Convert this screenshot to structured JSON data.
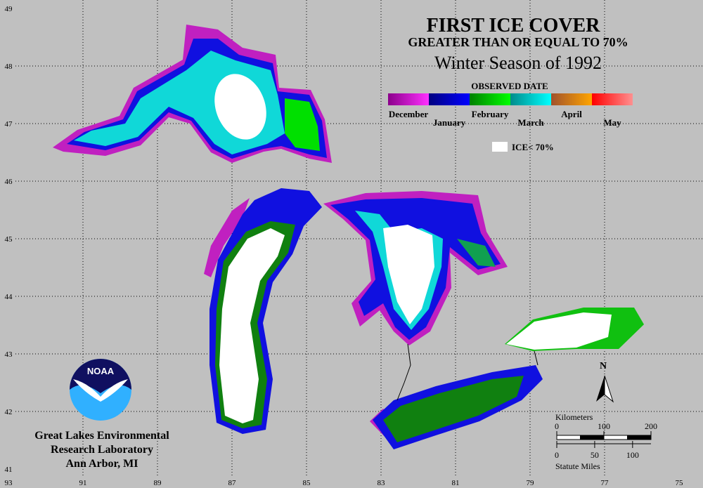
{
  "title": "FIRST ICE COVER",
  "subtitle": "GREATER THAN OR EQUAL TO 70%",
  "season": "Winter Season of 1992",
  "legend": {
    "title": "OBSERVED DATE",
    "items": [
      {
        "label": "December",
        "colors": [
          "#8b008b",
          "#ff30ff"
        ]
      },
      {
        "label": "January",
        "colors": [
          "#000080",
          "#0000ff"
        ]
      },
      {
        "label": "February",
        "colors": [
          "#008000",
          "#00ff00"
        ]
      },
      {
        "label": "March",
        "colors": [
          "#008b8b",
          "#00ffff"
        ]
      },
      {
        "label": "April",
        "colors": [
          "#a0522d",
          "#ffa500"
        ]
      },
      {
        "label": "May",
        "colors": [
          "#ff0000",
          "#ff9090"
        ]
      }
    ],
    "ice_label": "ICE< 70%"
  },
  "grid": {
    "longitudes": [
      93,
      91,
      89,
      87,
      85,
      83,
      81,
      79,
      77,
      75
    ],
    "latitudes": [
      49,
      48,
      47,
      46,
      45,
      44,
      43,
      42,
      41
    ]
  },
  "logo": "NOAA",
  "lab": [
    "Great Lakes Environmental",
    "Research Laboratory",
    "Ann Arbor, MI"
  ],
  "north": "N",
  "scale": {
    "km_label": "Kilometers",
    "km_ticks": [
      0,
      100,
      200
    ],
    "mi_label": "Statute Miles",
    "mi_ticks": [
      0,
      50,
      100
    ]
  }
}
